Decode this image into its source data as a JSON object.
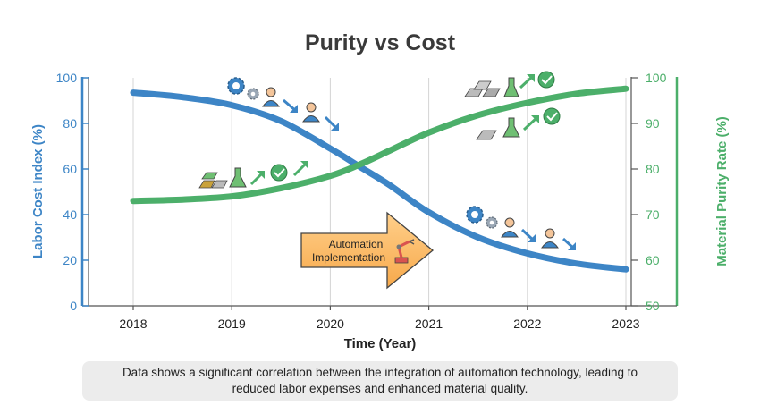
{
  "chart_data": {
    "type": "line",
    "title": "Purity vs Cost",
    "xlabel": "Time (Year)",
    "ylabel_left": "Labor Cost Index (%)",
    "ylabel_right": "Material Purity Rate (%)",
    "x_ticks": [
      "2018",
      "2019",
      "2020",
      "2021",
      "2022",
      "2023"
    ],
    "y_left_ticks": [
      "0",
      "20",
      "40",
      "60",
      "80",
      "100"
    ],
    "y_right_ticks": [
      "50",
      "60",
      "70",
      "80",
      "90",
      "100"
    ],
    "ylim_left": [
      0,
      100
    ],
    "ylim_right": [
      50,
      100
    ],
    "xlim": [
      2018,
      2023
    ],
    "grid": "vertical",
    "series": [
      {
        "axis": "left",
        "color": "#3d85c6",
        "x": [
          2018,
          2018.5,
          2019,
          2019.5,
          2020,
          2020.3,
          2020.6,
          2021,
          2021.5,
          2022,
          2022.5,
          2023
        ],
        "values": [
          93.5,
          91.5,
          88,
          81,
          69,
          61,
          53,
          41,
          30,
          23,
          18.5,
          16
        ]
      },
      {
        "axis": "right",
        "color": "#4caf6a",
        "x": [
          2018,
          2018.5,
          2019,
          2019.5,
          2020,
          2020.3,
          2020.6,
          2021,
          2021.5,
          2022,
          2022.5,
          2023
        ],
        "values": [
          73,
          73.3,
          74,
          75.8,
          78.5,
          81,
          84,
          88,
          91.8,
          94.5,
          96.5,
          97.6
        ]
      }
    ],
    "annotation": {
      "line1": "Automation",
      "line2": "Implementation"
    },
    "caption": "Data shows a significant correlation between the integration of automation technology, leading to reduced labor expenses and enhanced material quality.",
    "icons": {
      "labor_top": [
        "gear-icon",
        "person-icon",
        "arrow-down-right-icon"
      ],
      "labor_bottom": [
        "gear-icon",
        "person-icon",
        "arrow-down-right-icon"
      ],
      "purity_left": [
        "gold-bars-icon",
        "flask-icon",
        "arrow-up-right-icon",
        "check-circle-icon"
      ],
      "purity_top": [
        "metal-ingots-icon",
        "flask-icon",
        "arrow-up-right-icon",
        "check-circle-icon"
      ],
      "annotation": [
        "robot-arm-icon"
      ]
    }
  }
}
